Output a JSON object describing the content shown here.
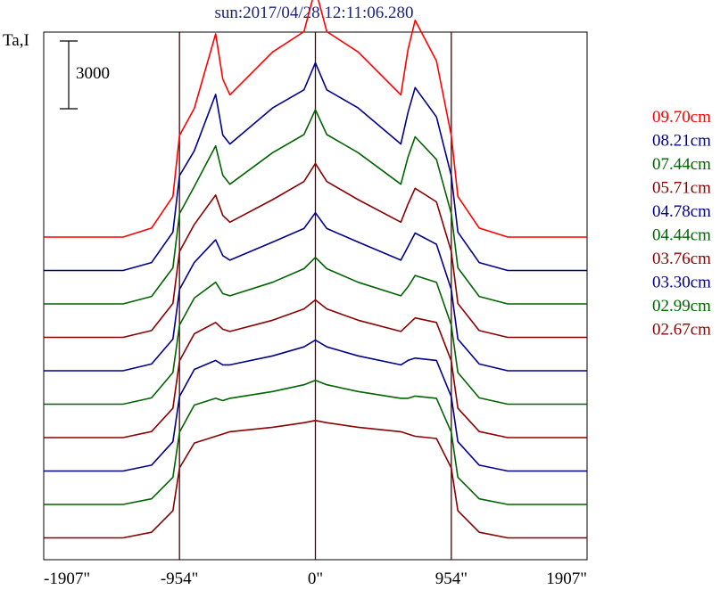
{
  "chart_data": {
    "type": "line",
    "title": "sun:2017/04/28 12:11:06.280",
    "ylabel": "Ta,I",
    "scale_bar_label": "3000",
    "x_tick_labels": [
      "-1907\"",
      "-954\"",
      "0\"",
      "954\"",
      "1907\""
    ],
    "x_ticks": [
      -1907,
      -954,
      0,
      954,
      1907
    ],
    "xlim": [
      -1907,
      1907
    ],
    "vertical_reference_lines": [
      -954,
      0,
      954
    ],
    "grid": false,
    "legend_position": "right",
    "series": [
      {
        "name": "09.70cm",
        "color": "#ff0000",
        "x": [
          -1907,
          -1350,
          -1150,
          -1000,
          -954,
          -850,
          -700,
          -650,
          -600,
          -300,
          -80,
          0,
          80,
          300,
          600,
          650,
          700,
          850,
          954,
          1000,
          1150,
          1350,
          1907
        ],
        "y": [
          0,
          0,
          400,
          1800,
          4500,
          5700,
          9000,
          7000,
          6300,
          8200,
          9100,
          11000,
          9100,
          8200,
          6300,
          8300,
          9600,
          7800,
          4500,
          1800,
          400,
          0,
          0
        ]
      },
      {
        "name": "08.21cm",
        "color": "#00008b",
        "x": [
          -1907,
          -1350,
          -1150,
          -1000,
          -954,
          -850,
          -700,
          -650,
          -600,
          -300,
          -80,
          0,
          80,
          300,
          600,
          650,
          700,
          850,
          954,
          1000,
          1150,
          1350,
          1907
        ],
        "y": [
          0,
          0,
          350,
          1700,
          4200,
          5300,
          7800,
          6000,
          5600,
          7200,
          8000,
          9200,
          8000,
          7200,
          5600,
          7000,
          8100,
          6800,
          4200,
          1700,
          350,
          0,
          0
        ]
      },
      {
        "name": "07.44cm",
        "color": "#006400",
        "x": [
          -1907,
          -1350,
          -1150,
          -1000,
          -954,
          -850,
          -700,
          -650,
          -600,
          -300,
          -80,
          0,
          80,
          300,
          600,
          650,
          700,
          850,
          954,
          1000,
          1150,
          1350,
          1907
        ],
        "y": [
          0,
          0,
          330,
          1600,
          4000,
          5200,
          7000,
          5700,
          5300,
          6700,
          7500,
          8600,
          7500,
          6700,
          5300,
          6500,
          7400,
          6400,
          4000,
          1600,
          330,
          0,
          0
        ]
      },
      {
        "name": "05.71cm",
        "color": "#8b0000",
        "x": [
          -1907,
          -1350,
          -1150,
          -1000,
          -954,
          -850,
          -700,
          -650,
          -600,
          -300,
          -80,
          0,
          80,
          300,
          600,
          650,
          700,
          850,
          954,
          1000,
          1150,
          1350,
          1907
        ],
        "y": [
          0,
          0,
          300,
          1500,
          3800,
          5000,
          6300,
          5400,
          5100,
          6100,
          6900,
          7700,
          6900,
          6100,
          5100,
          5900,
          6600,
          6000,
          3800,
          1500,
          300,
          0,
          0
        ]
      },
      {
        "name": "04.78cm",
        "color": "#00008b",
        "x": [
          -1907,
          -1350,
          -1150,
          -1000,
          -954,
          -850,
          -700,
          -650,
          -600,
          -300,
          -80,
          0,
          80,
          300,
          600,
          650,
          700,
          850,
          954,
          1000,
          1150,
          1350,
          1907
        ],
        "y": [
          0,
          0,
          300,
          1400,
          3600,
          4800,
          5800,
          5100,
          4900,
          5700,
          6300,
          7000,
          6300,
          5700,
          4900,
          5500,
          6100,
          5600,
          3600,
          1400,
          300,
          0,
          0
        ]
      },
      {
        "name": "04.44cm",
        "color": "#006400",
        "x": [
          -1907,
          -1350,
          -1150,
          -1000,
          -954,
          -850,
          -700,
          -650,
          -600,
          -300,
          -80,
          0,
          80,
          300,
          600,
          650,
          700,
          850,
          954,
          1000,
          1150,
          1350,
          1907
        ],
        "y": [
          0,
          0,
          280,
          1400,
          3500,
          4700,
          5400,
          4900,
          4800,
          5400,
          6000,
          6500,
          6000,
          5400,
          4800,
          5200,
          5700,
          5400,
          3500,
          1400,
          280,
          0,
          0
        ]
      },
      {
        "name": "03.76cm",
        "color": "#8b0000",
        "x": [
          -1907,
          -1350,
          -1150,
          -1000,
          -954,
          -850,
          -700,
          -650,
          -600,
          -300,
          -80,
          0,
          80,
          300,
          600,
          650,
          700,
          850,
          954,
          1000,
          1150,
          1350,
          1907
        ],
        "y": [
          0,
          0,
          270,
          1300,
          3400,
          4600,
          5100,
          4800,
          4700,
          5200,
          5700,
          6100,
          5700,
          5200,
          4700,
          5000,
          5300,
          5100,
          3400,
          1300,
          270,
          0,
          0
        ]
      },
      {
        "name": "03.30cm",
        "color": "#00008b",
        "x": [
          -1907,
          -1350,
          -1150,
          -1000,
          -954,
          -850,
          -700,
          -650,
          -600,
          -300,
          -80,
          0,
          80,
          300,
          600,
          650,
          700,
          850,
          954,
          1000,
          1150,
          1350,
          1907
        ],
        "y": [
          0,
          0,
          260,
          1300,
          3300,
          4500,
          4900,
          4700,
          4700,
          5100,
          5500,
          5800,
          5500,
          5100,
          4700,
          4900,
          5000,
          4900,
          3300,
          1300,
          260,
          0,
          0
        ]
      },
      {
        "name": "02.99cm",
        "color": "#006400",
        "x": [
          -1907,
          -1350,
          -1150,
          -1000,
          -954,
          -850,
          -700,
          -650,
          -600,
          -300,
          -80,
          0,
          80,
          300,
          600,
          650,
          700,
          850,
          954,
          1000,
          1150,
          1350,
          1907
        ],
        "y": [
          0,
          0,
          250,
          1200,
          3200,
          4400,
          4700,
          4600,
          4700,
          5000,
          5300,
          5500,
          5300,
          5000,
          4700,
          4700,
          4800,
          4700,
          3200,
          1200,
          250,
          0,
          0
        ]
      },
      {
        "name": "02.67cm",
        "color": "#8b0000",
        "x": [
          -1907,
          -1350,
          -1150,
          -1000,
          -954,
          -850,
          -700,
          -650,
          -600,
          -300,
          -80,
          0,
          80,
          300,
          600,
          650,
          700,
          850,
          954,
          1000,
          1150,
          1350,
          1907
        ],
        "y": [
          0,
          0,
          250,
          1200,
          3100,
          4200,
          4500,
          4600,
          4700,
          4900,
          5100,
          5200,
          5100,
          4900,
          4700,
          4600,
          4500,
          4400,
          3100,
          1200,
          250,
          0,
          0
        ]
      }
    ]
  }
}
